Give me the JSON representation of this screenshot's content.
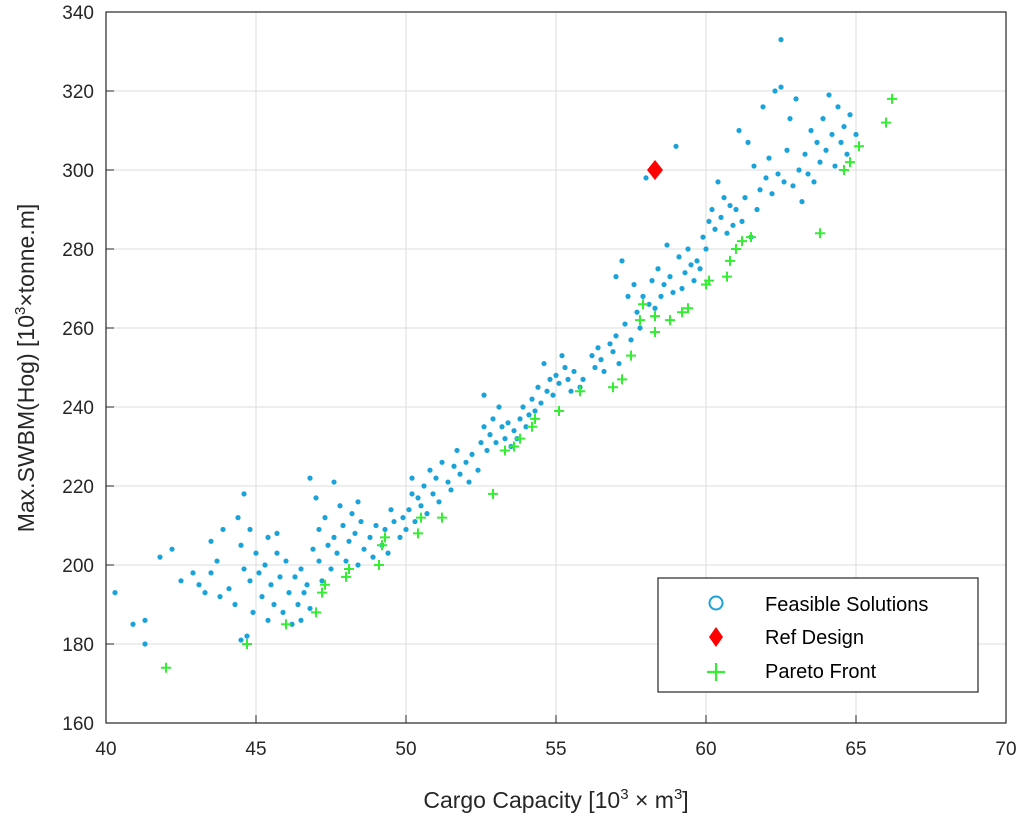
{
  "chart_data": {
    "type": "scatter",
    "title": "",
    "xlabel": {
      "text": "Cargo Capacity [10",
      "sup1": "3",
      "mid": " × m",
      "sup2": "3",
      "end": "]"
    },
    "ylabel": {
      "text": "Max.SWBM(Hog) [10",
      "sup": "3",
      "end": "×tonne.m]"
    },
    "xlim": [
      40,
      70
    ],
    "ylim": [
      160,
      340
    ],
    "xticks": [
      40,
      45,
      50,
      55,
      60,
      65,
      70
    ],
    "yticks": [
      160,
      180,
      200,
      220,
      240,
      260,
      280,
      300,
      320,
      340
    ],
    "grid": true,
    "legend_position": "bottom-right",
    "colors": {
      "feasible": "#1aa3d9",
      "ref": "#ff0000",
      "pareto": "#33ee33"
    },
    "series": [
      {
        "name": "Feasible Solutions",
        "marker": "dot",
        "points": [
          [
            40.3,
            193
          ],
          [
            40.9,
            185
          ],
          [
            41.3,
            186
          ],
          [
            41.3,
            180
          ],
          [
            41.8,
            202
          ],
          [
            42.2,
            204
          ],
          [
            42.5,
            196
          ],
          [
            42.9,
            198
          ],
          [
            43.1,
            195
          ],
          [
            43.3,
            193
          ],
          [
            43.5,
            198
          ],
          [
            43.5,
            206
          ],
          [
            43.7,
            201
          ],
          [
            43.8,
            192
          ],
          [
            43.9,
            209
          ],
          [
            44.1,
            194
          ],
          [
            44.3,
            190
          ],
          [
            44.4,
            212
          ],
          [
            44.5,
            205
          ],
          [
            44.5,
            181
          ],
          [
            44.6,
            218
          ],
          [
            44.6,
            199
          ],
          [
            44.7,
            182
          ],
          [
            44.8,
            209
          ],
          [
            44.8,
            196
          ],
          [
            44.9,
            188
          ],
          [
            45.0,
            203
          ],
          [
            45.1,
            198
          ],
          [
            45.2,
            192
          ],
          [
            45.3,
            200
          ],
          [
            45.4,
            207
          ],
          [
            45.4,
            186
          ],
          [
            45.5,
            195
          ],
          [
            45.6,
            190
          ],
          [
            45.7,
            203
          ],
          [
            45.7,
            208
          ],
          [
            45.8,
            197
          ],
          [
            45.9,
            188
          ],
          [
            46.0,
            201
          ],
          [
            46.1,
            193
          ],
          [
            46.2,
            185
          ],
          [
            46.3,
            197
          ],
          [
            46.4,
            190
          ],
          [
            46.5,
            199
          ],
          [
            46.5,
            186
          ],
          [
            46.6,
            193
          ],
          [
            46.7,
            195
          ],
          [
            46.8,
            189
          ],
          [
            46.8,
            222
          ],
          [
            46.9,
            204
          ],
          [
            47.0,
            217
          ],
          [
            47.1,
            209
          ],
          [
            47.1,
            201
          ],
          [
            47.2,
            196
          ],
          [
            47.3,
            212
          ],
          [
            47.4,
            205
          ],
          [
            47.5,
            199
          ],
          [
            47.6,
            221
          ],
          [
            47.6,
            207
          ],
          [
            47.7,
            203
          ],
          [
            47.8,
            215
          ],
          [
            47.9,
            210
          ],
          [
            48.0,
            201
          ],
          [
            48.1,
            206
          ],
          [
            48.2,
            213
          ],
          [
            48.3,
            208
          ],
          [
            48.4,
            216
          ],
          [
            48.4,
            200
          ],
          [
            48.5,
            211
          ],
          [
            48.6,
            204
          ],
          [
            48.8,
            207
          ],
          [
            48.9,
            202
          ],
          [
            49.0,
            210
          ],
          [
            49.2,
            205
          ],
          [
            49.3,
            209
          ],
          [
            49.4,
            203
          ],
          [
            49.5,
            214
          ],
          [
            49.6,
            211
          ],
          [
            49.8,
            207
          ],
          [
            49.9,
            212
          ],
          [
            50.0,
            209
          ],
          [
            50.1,
            214
          ],
          [
            50.2,
            218
          ],
          [
            50.2,
            222
          ],
          [
            50.3,
            211
          ],
          [
            50.4,
            217
          ],
          [
            50.5,
            215
          ],
          [
            50.6,
            220
          ],
          [
            50.7,
            213
          ],
          [
            50.8,
            224
          ],
          [
            50.9,
            218
          ],
          [
            51.0,
            222
          ],
          [
            51.1,
            216
          ],
          [
            51.2,
            226
          ],
          [
            51.4,
            221
          ],
          [
            51.5,
            219
          ],
          [
            51.6,
            225
          ],
          [
            51.7,
            229
          ],
          [
            51.8,
            223
          ],
          [
            52.0,
            226
          ],
          [
            52.1,
            221
          ],
          [
            52.2,
            228
          ],
          [
            52.4,
            224
          ],
          [
            52.5,
            231
          ],
          [
            52.6,
            235
          ],
          [
            52.6,
            243
          ],
          [
            52.7,
            229
          ],
          [
            52.8,
            233
          ],
          [
            52.9,
            237
          ],
          [
            53.0,
            231
          ],
          [
            53.1,
            240
          ],
          [
            53.2,
            235
          ],
          [
            53.3,
            232
          ],
          [
            53.4,
            236
          ],
          [
            53.5,
            230
          ],
          [
            53.6,
            234
          ],
          [
            53.7,
            232
          ],
          [
            53.8,
            237
          ],
          [
            53.9,
            240
          ],
          [
            54.0,
            235
          ],
          [
            54.1,
            238
          ],
          [
            54.2,
            242
          ],
          [
            54.3,
            239
          ],
          [
            54.4,
            245
          ],
          [
            54.5,
            241
          ],
          [
            54.6,
            251
          ],
          [
            54.7,
            244
          ],
          [
            54.8,
            247
          ],
          [
            54.9,
            243
          ],
          [
            55.0,
            248
          ],
          [
            55.1,
            246
          ],
          [
            55.2,
            253
          ],
          [
            55.3,
            250
          ],
          [
            55.4,
            247
          ],
          [
            55.5,
            244
          ],
          [
            55.6,
            249
          ],
          [
            55.8,
            245
          ],
          [
            55.9,
            247
          ],
          [
            56.2,
            253
          ],
          [
            56.3,
            250
          ],
          [
            56.4,
            255
          ],
          [
            56.5,
            252
          ],
          [
            56.6,
            249
          ],
          [
            56.8,
            256
          ],
          [
            56.9,
            254
          ],
          [
            57.0,
            258
          ],
          [
            57.0,
            273
          ],
          [
            57.1,
            251
          ],
          [
            57.2,
            277
          ],
          [
            57.3,
            261
          ],
          [
            57.4,
            268
          ],
          [
            57.5,
            257
          ],
          [
            57.6,
            271
          ],
          [
            57.7,
            264
          ],
          [
            57.8,
            260
          ],
          [
            57.9,
            268
          ],
          [
            58.0,
            298
          ],
          [
            58.1,
            266
          ],
          [
            58.2,
            272
          ],
          [
            58.3,
            265
          ],
          [
            58.4,
            275
          ],
          [
            58.5,
            268
          ],
          [
            58.6,
            271
          ],
          [
            58.7,
            281
          ],
          [
            58.8,
            273
          ],
          [
            58.9,
            269
          ],
          [
            59.0,
            306
          ],
          [
            59.1,
            278
          ],
          [
            59.2,
            270
          ],
          [
            59.3,
            274
          ],
          [
            59.4,
            280
          ],
          [
            59.5,
            276
          ],
          [
            59.6,
            272
          ],
          [
            59.7,
            277
          ],
          [
            59.8,
            275
          ],
          [
            59.9,
            283
          ],
          [
            60.0,
            280
          ],
          [
            60.1,
            287
          ],
          [
            60.2,
            290
          ],
          [
            60.3,
            285
          ],
          [
            60.4,
            297
          ],
          [
            60.5,
            288
          ],
          [
            60.6,
            293
          ],
          [
            60.7,
            284
          ],
          [
            60.8,
            291
          ],
          [
            60.9,
            286
          ],
          [
            61.0,
            290
          ],
          [
            61.1,
            310
          ],
          [
            61.2,
            287
          ],
          [
            61.3,
            293
          ],
          [
            61.4,
            307
          ],
          [
            61.5,
            283
          ],
          [
            61.6,
            301
          ],
          [
            61.7,
            290
          ],
          [
            61.8,
            295
          ],
          [
            61.9,
            316
          ],
          [
            62.0,
            298
          ],
          [
            62.1,
            303
          ],
          [
            62.2,
            294
          ],
          [
            62.3,
            320
          ],
          [
            62.4,
            299
          ],
          [
            62.5,
            333
          ],
          [
            62.5,
            321
          ],
          [
            62.6,
            297
          ],
          [
            62.7,
            305
          ],
          [
            62.8,
            313
          ],
          [
            62.9,
            296
          ],
          [
            63.0,
            318
          ],
          [
            63.1,
            300
          ],
          [
            63.2,
            292
          ],
          [
            63.3,
            304
          ],
          [
            63.4,
            299
          ],
          [
            63.5,
            310
          ],
          [
            63.6,
            297
          ],
          [
            63.7,
            307
          ],
          [
            63.8,
            302
          ],
          [
            63.9,
            313
          ],
          [
            64.0,
            305
          ],
          [
            64.1,
            319
          ],
          [
            64.2,
            309
          ],
          [
            64.3,
            301
          ],
          [
            64.4,
            316
          ],
          [
            64.5,
            307
          ],
          [
            64.6,
            311
          ],
          [
            64.7,
            304
          ],
          [
            64.8,
            314
          ],
          [
            65.0,
            309
          ]
        ]
      },
      {
        "name": "Ref Design",
        "marker": "diamond",
        "points": [
          [
            58.3,
            300
          ]
        ]
      },
      {
        "name": "Pareto Front",
        "marker": "plus",
        "points": [
          [
            42.0,
            174
          ],
          [
            44.7,
            180
          ],
          [
            46.0,
            185
          ],
          [
            47.0,
            188
          ],
          [
            47.2,
            193
          ],
          [
            47.3,
            195
          ],
          [
            48.0,
            197
          ],
          [
            48.1,
            199
          ],
          [
            49.1,
            200
          ],
          [
            49.2,
            205
          ],
          [
            49.3,
            207
          ],
          [
            50.4,
            208
          ],
          [
            50.5,
            212
          ],
          [
            51.2,
            212
          ],
          [
            52.9,
            218
          ],
          [
            53.3,
            229
          ],
          [
            53.6,
            230
          ],
          [
            53.8,
            232
          ],
          [
            54.2,
            235
          ],
          [
            54.3,
            237
          ],
          [
            55.1,
            239
          ],
          [
            55.8,
            244
          ],
          [
            56.9,
            245
          ],
          [
            57.2,
            247
          ],
          [
            57.5,
            253
          ],
          [
            57.8,
            262
          ],
          [
            57.9,
            266
          ],
          [
            58.3,
            259
          ],
          [
            58.3,
            263
          ],
          [
            58.8,
            262
          ],
          [
            59.2,
            264
          ],
          [
            59.4,
            265
          ],
          [
            60.0,
            271
          ],
          [
            60.1,
            272
          ],
          [
            60.7,
            273
          ],
          [
            60.8,
            277
          ],
          [
            61.0,
            280
          ],
          [
            61.2,
            282
          ],
          [
            61.5,
            283
          ],
          [
            63.8,
            284
          ],
          [
            64.6,
            300
          ],
          [
            64.8,
            302
          ],
          [
            65.1,
            306
          ],
          [
            66.0,
            312
          ],
          [
            66.2,
            318
          ]
        ]
      }
    ]
  }
}
